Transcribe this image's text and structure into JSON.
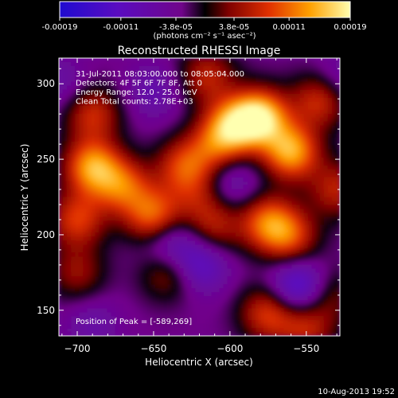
{
  "colorbar": {
    "tick_labels": [
      "-0.00019",
      "-0.00011",
      "-3.8e-05",
      "3.8e-05",
      "0.00011",
      "0.00019"
    ],
    "unit_label": "(photons cm⁻² s⁻¹ asec⁻²)",
    "range": [
      -0.00019,
      0.00019
    ]
  },
  "chart_data": {
    "type": "heatmap",
    "title": "Reconstructed RHESSI Image",
    "xlabel": "Heliocentric X (arcsec)",
    "ylabel": "Heliocentric Y (arcsec)",
    "xlim": [
      -712,
      -528
    ],
    "ylim": [
      133,
      317
    ],
    "x_ticks": [
      -700,
      -650,
      -600,
      -550
    ],
    "x_tick_labels": [
      "−700",
      "−650",
      "−600",
      "−550"
    ],
    "y_ticks": [
      150,
      200,
      250,
      300
    ],
    "y_tick_labels": [
      "150",
      "200",
      "250",
      "300"
    ],
    "info_lines": [
      "31-Jul-2011 08:03:00.000 to 08:05:04.000",
      "Detectors: 4F 5F 6F 7F 8F, Att 0",
      "Energy Range: 12.0 - 25.0 keV",
      "Clean    Total counts: 2.78E+03"
    ],
    "peak_label": "Position of Peak = [-589,269]",
    "peak_position": [
      -589,
      269
    ],
    "sources": [
      {
        "x": -580,
        "y": 278,
        "value": 0.00019
      },
      {
        "x": -598,
        "y": 272,
        "value": 0.00015
      },
      {
        "x": -560,
        "y": 255,
        "value": 0.00017
      },
      {
        "x": -540,
        "y": 290,
        "value": 0.00012
      },
      {
        "x": -690,
        "y": 245,
        "value": 0.00016
      },
      {
        "x": -670,
        "y": 232,
        "value": 0.00012
      },
      {
        "x": -700,
        "y": 210,
        "value": 0.00011
      },
      {
        "x": -650,
        "y": 212,
        "value": 0.00014
      },
      {
        "x": -630,
        "y": 245,
        "value": 0.00011
      },
      {
        "x": -615,
        "y": 305,
        "value": 9e-05
      },
      {
        "x": -690,
        "y": 280,
        "value": 0.0001
      },
      {
        "x": -610,
        "y": 258,
        "value": 9e-05
      },
      {
        "x": -575,
        "y": 208,
        "value": 0.00013
      },
      {
        "x": -560,
        "y": 198,
        "value": 0.0001
      },
      {
        "x": -610,
        "y": 205,
        "value": 8e-05
      },
      {
        "x": -575,
        "y": 148,
        "value": 0.00011
      },
      {
        "x": -550,
        "y": 138,
        "value": 9e-05
      },
      {
        "x": -700,
        "y": 175,
        "value": 7e-05
      },
      {
        "x": -640,
        "y": 175,
        "value": 8e-05
      },
      {
        "x": -530,
        "y": 230,
        "value": 9e-05
      },
      {
        "x": -620,
        "y": 225,
        "value": 6e-05
      },
      {
        "x": -535,
        "y": 160,
        "value": 6e-05
      },
      {
        "x": -650,
        "y": 295,
        "value": -5e-05
      },
      {
        "x": -640,
        "y": 195,
        "value": -8e-05
      },
      {
        "x": -620,
        "y": 180,
        "value": -9e-05
      },
      {
        "x": -555,
        "y": 165,
        "value": -0.00012
      },
      {
        "x": -600,
        "y": 235,
        "value": -6e-05
      },
      {
        "x": -530,
        "y": 300,
        "value": -6e-05
      },
      {
        "x": -710,
        "y": 300,
        "value": -4e-05
      },
      {
        "x": -690,
        "y": 140,
        "value": -4e-05
      }
    ]
  },
  "timestamp": "10-Aug-2013 19:52"
}
